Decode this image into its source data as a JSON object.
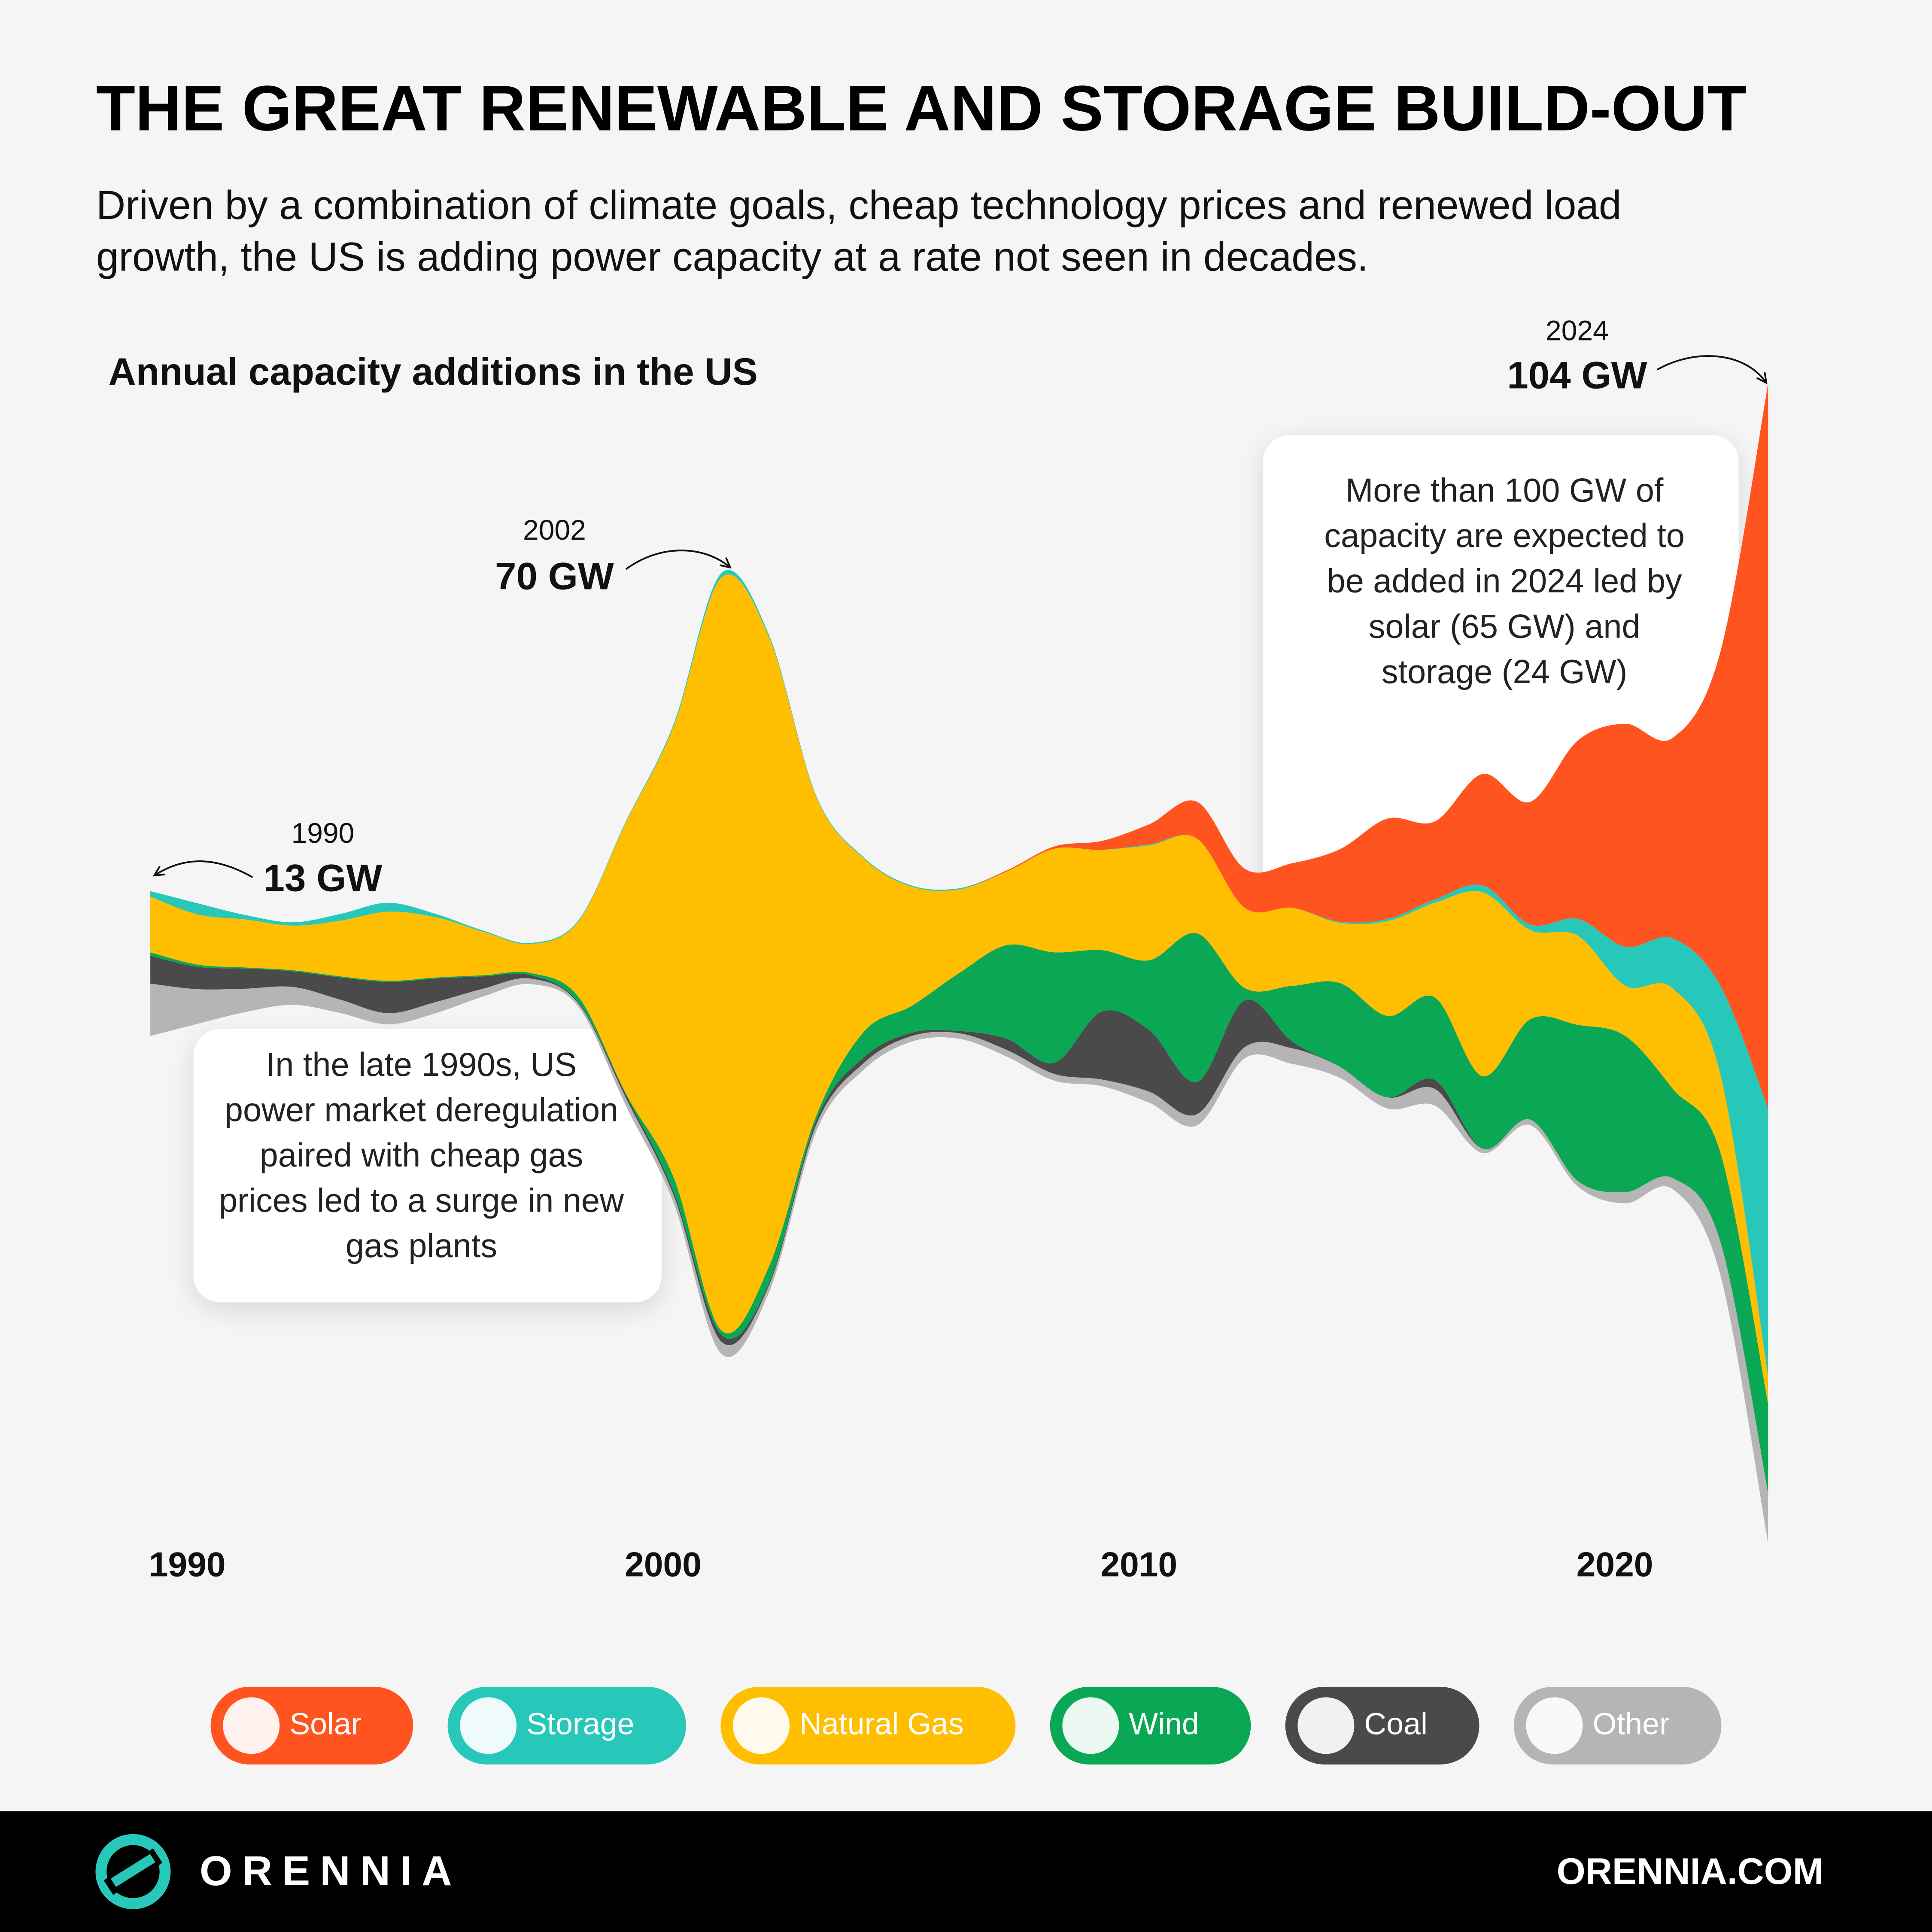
{
  "chart_data": {
    "type": "streamgraph",
    "title": "THE GREAT RENEWABLE AND STORAGE BUILD-OUT",
    "subtitle": [
      "Driven by a combination of climate goals, cheap technology prices and renewed load",
      "growth, the US is adding power capacity at a rate not seen in decades."
    ],
    "chart_subtitle": "Annual capacity additions in the US",
    "x": [
      1990,
      1991,
      1992,
      1993,
      1994,
      1995,
      1996,
      1997,
      1998,
      1999,
      2000,
      2001,
      2002,
      2003,
      2004,
      2005,
      2006,
      2007,
      2008,
      2009,
      2010,
      2011,
      2012,
      2013,
      2014,
      2015,
      2016,
      2017,
      2018,
      2019,
      2020,
      2021,
      2022,
      2023,
      2024
    ],
    "xlim": [
      1990,
      2024
    ],
    "xticks": [
      1990,
      2000,
      2010,
      2020
    ],
    "series": [
      {
        "name": "Solar",
        "color": "#ff5420",
        "values": [
          0,
          0,
          0,
          0,
          0,
          0,
          0,
          0,
          0,
          0,
          0,
          0,
          0,
          0,
          0,
          0,
          0,
          0,
          0.1,
          0.2,
          0.8,
          1.8,
          3.3,
          3.5,
          4,
          6.5,
          9,
          7,
          10,
          11,
          16,
          20,
          18,
          30,
          65
        ]
      },
      {
        "name": "Storage",
        "color": "#27c8ba",
        "values": [
          0.5,
          1,
          0.4,
          0.3,
          0.6,
          0.8,
          0.3,
          0.1,
          0.1,
          0.1,
          0.1,
          0.2,
          0.4,
          0.2,
          0.1,
          0.1,
          0.1,
          0.1,
          0,
          0,
          0,
          0.1,
          0,
          0,
          0,
          0.1,
          0.2,
          0.3,
          0.6,
          0.5,
          1.5,
          3.5,
          4.5,
          8,
          24
        ]
      },
      {
        "name": "Natural Gas",
        "color": "#ffbe00",
        "values": [
          5,
          4.5,
          4.3,
          4,
          5,
          6.2,
          5.4,
          3.9,
          2.6,
          6.8,
          24.4,
          40.5,
          67.5,
          56.5,
          28.5,
          15.5,
          10.7,
          7.5,
          6.6,
          9.3,
          9,
          10.3,
          8.5,
          7.2,
          7,
          5.4,
          8.5,
          8.5,
          16.5,
          8,
          8,
          4.5,
          9,
          7,
          2.5
        ]
      },
      {
        "name": "Wind",
        "color": "#0aa855",
        "values": [
          0.3,
          0.2,
          0.1,
          0.1,
          0.1,
          0.1,
          0.1,
          0.1,
          0.2,
          0.5,
          0.1,
          1.3,
          0.4,
          1.5,
          0.4,
          2.3,
          2.4,
          5.2,
          8.4,
          9.9,
          5.5,
          6.3,
          13.3,
          1.1,
          5,
          7.5,
          7.3,
          7.4,
          6.5,
          9,
          14,
          14,
          8,
          8,
          8
        ]
      },
      {
        "name": "Coal",
        "color": "#4a4a4a",
        "values": [
          2.5,
          2,
          1.8,
          1.4,
          2,
          2.8,
          2.1,
          1.1,
          0.3,
          0.1,
          0.3,
          0.3,
          0.6,
          0.2,
          0.4,
          0.5,
          0.3,
          0.2,
          1,
          1,
          6.1,
          5.5,
          2.9,
          4.2,
          0.6,
          0,
          0,
          0.8,
          0,
          0,
          0,
          0,
          0,
          0,
          0
        ]
      },
      {
        "name": "Other",
        "color": "#b5b5b5",
        "values": [
          4.7,
          3.1,
          2.1,
          1.6,
          1.2,
          1,
          1,
          0.7,
          0.5,
          0.3,
          0.7,
          0.7,
          1.1,
          0.6,
          0.6,
          0.6,
          0.5,
          0.5,
          0.6,
          0.6,
          0.6,
          1,
          1,
          1,
          1.4,
          1,
          1,
          1.5,
          0.4,
          0.5,
          0.5,
          1,
          1,
          3,
          4.5
        ]
      }
    ],
    "annotations": [
      {
        "year": "1990",
        "value": "13 GW"
      },
      {
        "year": "2002",
        "value": "70 GW"
      },
      {
        "year": "2024",
        "value": "104 GW"
      }
    ],
    "notes": [
      [
        "In the late 1990s, US",
        "power market deregulation",
        "paired with cheap gas",
        "prices led to a surge in new",
        "gas plants"
      ],
      [
        "More than 100 GW of",
        "capacity are expected to",
        "be added in 2024 led by",
        "solar (65 GW) and",
        "storage (24 GW)"
      ]
    ]
  },
  "footer": {
    "brand": "ORENNIA",
    "url": "ORENNIA.COM"
  }
}
